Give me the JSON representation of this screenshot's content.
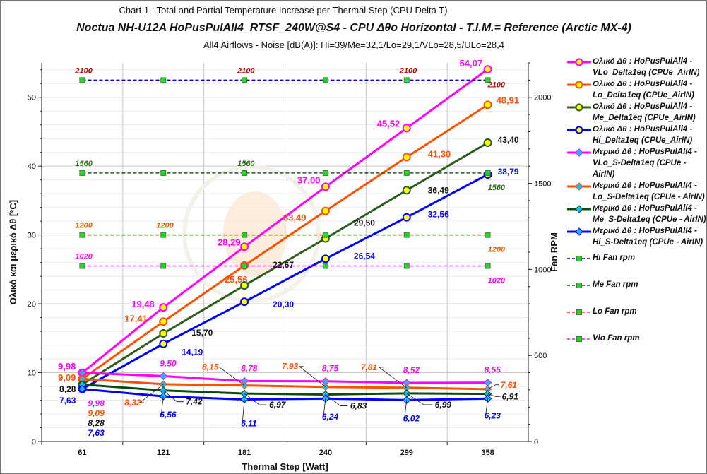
{
  "titles": {
    "line1": "Chart 1 :  Total and Partial Temperature  Increase per Thermal Step  (CPU Delta T)",
    "line2": "Noctua NH-U12A  HoPusPulAll4_RTSF_240W@S4  -  CPU  Δθο Horizontal  - T.I.M.= Reference (Arctic MX-4)",
    "line3": "All4  Airflows  -  Noise [dB(A)]: Hi=39/Me=32,1/Lo=29,1/VLo=28,5/ULo=28,4"
  },
  "chart_data": {
    "type": "line",
    "xlabel": "Thermal Step [Watt]",
    "ylabel": "Ολικό και  μερικό  Δθ  [°C]",
    "y2label": "Fan RPM",
    "categories": [
      "61",
      "121",
      "181",
      "240",
      "299",
      "358"
    ],
    "ylim": [
      0,
      55
    ],
    "yticks": [
      "0",
      "10",
      "20",
      "30",
      "40",
      "50"
    ],
    "y2lim": [
      0,
      2200
    ],
    "y2ticks": [
      "0",
      "500",
      "1000",
      "1500",
      "2000"
    ],
    "grid": true,
    "legend": "right",
    "series": [
      {
        "name": "Ολικό Δθ : HoPusPulAll4 -VLo_Delta1eq (CPUe_AirIN)",
        "axis": "left",
        "kind": "total",
        "color": "#ff00ff",
        "values": [
          9.98,
          19.48,
          28.29,
          37.0,
          45.52,
          54.07
        ],
        "labels": [
          "9,98",
          "19,48",
          "28,29",
          "37,00",
          "45,52",
          "54,07"
        ]
      },
      {
        "name": "Ολικό Δθ : HoPusPulAll4 -Lo_Delta1eq (CPUe_AirIN)",
        "axis": "left",
        "kind": "total",
        "color": "#ff5000",
        "values": [
          9.09,
          17.41,
          25.56,
          33.49,
          41.3,
          48.91
        ],
        "labels": [
          "9,09",
          "17,41",
          "25,56",
          "33,49",
          "41,30",
          "48,91"
        ]
      },
      {
        "name": "Ολικό Δθ : HoPusPulAll4 -Me_Delta1eq (CPUe_AirIN)",
        "axis": "left",
        "kind": "total",
        "color": "#2e5e1e",
        "values": [
          8.28,
          15.7,
          22.67,
          29.5,
          36.49,
          43.4
        ],
        "labels": [
          "8,28",
          "15,70",
          "22,67",
          "29,50",
          "36,49",
          "43,40"
        ]
      },
      {
        "name": "Ολικό Δθ : HoPusPulAll4 -Hi_Delta1eq (CPUe_AirIN)",
        "axis": "left",
        "kind": "total",
        "color": "#0000ff",
        "values": [
          7.63,
          14.19,
          20.3,
          26.54,
          32.56,
          38.79
        ],
        "labels": [
          "7,63",
          "14,19",
          "20,30",
          "26,54",
          "32,56",
          "38,79"
        ]
      },
      {
        "name": "Μερικό Δθ : HoPusPulAll4 -VLo_S-Delta1eq (CPUe - AirIN)",
        "axis": "left",
        "kind": "partial",
        "color": "#ff00ff",
        "values": [
          9.98,
          9.5,
          8.78,
          8.75,
          8.52,
          8.55
        ],
        "labels": [
          "9,98",
          "9,50",
          "8,78",
          "8,75",
          "8,52",
          "8,55"
        ]
      },
      {
        "name": "Μερικό Δθ : HoPusPulAll4 -Lo_S-Delta1eq (CPUe - AirIN)",
        "axis": "left",
        "kind": "partial",
        "color": "#ff5000",
        "values": [
          9.09,
          8.32,
          8.15,
          7.93,
          7.81,
          7.61
        ],
        "labels": [
          "9,09",
          "8,32",
          "8,15",
          "7,93",
          "7,81",
          "7,61"
        ]
      },
      {
        "name": "Μερικό Δθ : HoPusPulAll4 -Me_S-Delta1eq (CPUe - AirIN)",
        "axis": "left",
        "kind": "partial",
        "color": "#0a4a0a",
        "values": [
          8.28,
          7.42,
          6.97,
          6.83,
          6.99,
          6.91
        ],
        "labels": [
          "8,28",
          "7,42",
          "6,97",
          "6,83",
          "6,99",
          "6,91"
        ]
      },
      {
        "name": "Μερικό Δθ : HoPusPulAll4 -Hi_S-Delta1eq (CPUe - AirIN)",
        "axis": "left",
        "kind": "partial",
        "color": "#0000ff",
        "values": [
          7.63,
          6.56,
          6.11,
          6.24,
          6.02,
          6.23
        ],
        "labels": [
          "7,63",
          "6,56",
          "6,11",
          "6,24",
          "6,02",
          "6,23"
        ]
      },
      {
        "name": "Hi Fan rpm",
        "axis": "right",
        "kind": "fan",
        "color": "#0000cc",
        "values": [
          2100,
          2100,
          2100,
          2100,
          2100,
          2100
        ],
        "labels": [
          "2100",
          "",
          "2100",
          "",
          "2100",
          "2100"
        ],
        "labelColor": "#c00000"
      },
      {
        "name": "Me Fan rpm",
        "axis": "right",
        "kind": "fan",
        "color": "#1e5a1e",
        "values": [
          1560,
          1560,
          1560,
          1560,
          1560,
          1560
        ],
        "labels": [
          "1560",
          "",
          "1560",
          "",
          "",
          "1560"
        ],
        "labelColor": "#2e6e1e"
      },
      {
        "name": "Lo Fan rpm",
        "axis": "right",
        "kind": "fan",
        "color": "#ff3300",
        "values": [
          1200,
          1200,
          1200,
          1200,
          1200,
          1200
        ],
        "labels": [
          "1200",
          "1200",
          "",
          "",
          "",
          "1200"
        ],
        "labelColor": "#ff5000"
      },
      {
        "name": "Vlo Fan rpm",
        "axis": "right",
        "kind": "fan",
        "color": "#ff00ff",
        "values": [
          1020,
          1020,
          1020,
          1020,
          1020,
          1020
        ],
        "labels": [
          "1020",
          "",
          "",
          "",
          "",
          "1020"
        ],
        "labelColor": "#ff00ff"
      }
    ]
  }
}
